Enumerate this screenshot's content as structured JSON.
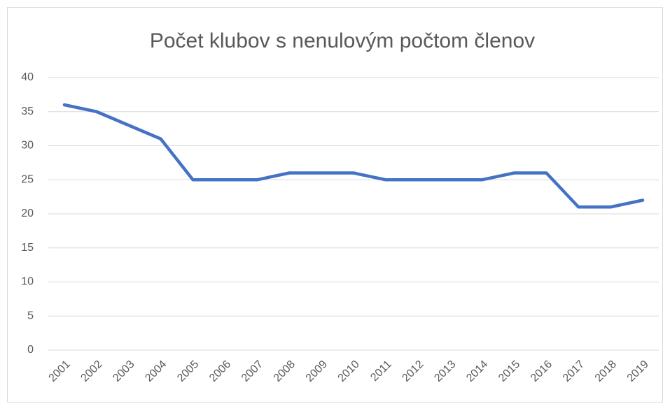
{
  "chart_data": {
    "type": "line",
    "title": "Počet klubov s nenulovým počtom členov",
    "categories": [
      "2001",
      "2002",
      "2003",
      "2004",
      "2005",
      "2006",
      "2007",
      "2008",
      "2009",
      "2010",
      "2011",
      "2012",
      "2013",
      "2014",
      "2015",
      "2016",
      "2017",
      "2018",
      "2019"
    ],
    "values": [
      36,
      35,
      33,
      31,
      25,
      25,
      25,
      26,
      26,
      26,
      25,
      25,
      25,
      25,
      26,
      26,
      21,
      21,
      22
    ],
    "color": "#4472c4",
    "ylim": [
      0,
      40
    ],
    "yticks": [
      0,
      5,
      10,
      15,
      20,
      25,
      30,
      35,
      40
    ],
    "grid": true
  }
}
